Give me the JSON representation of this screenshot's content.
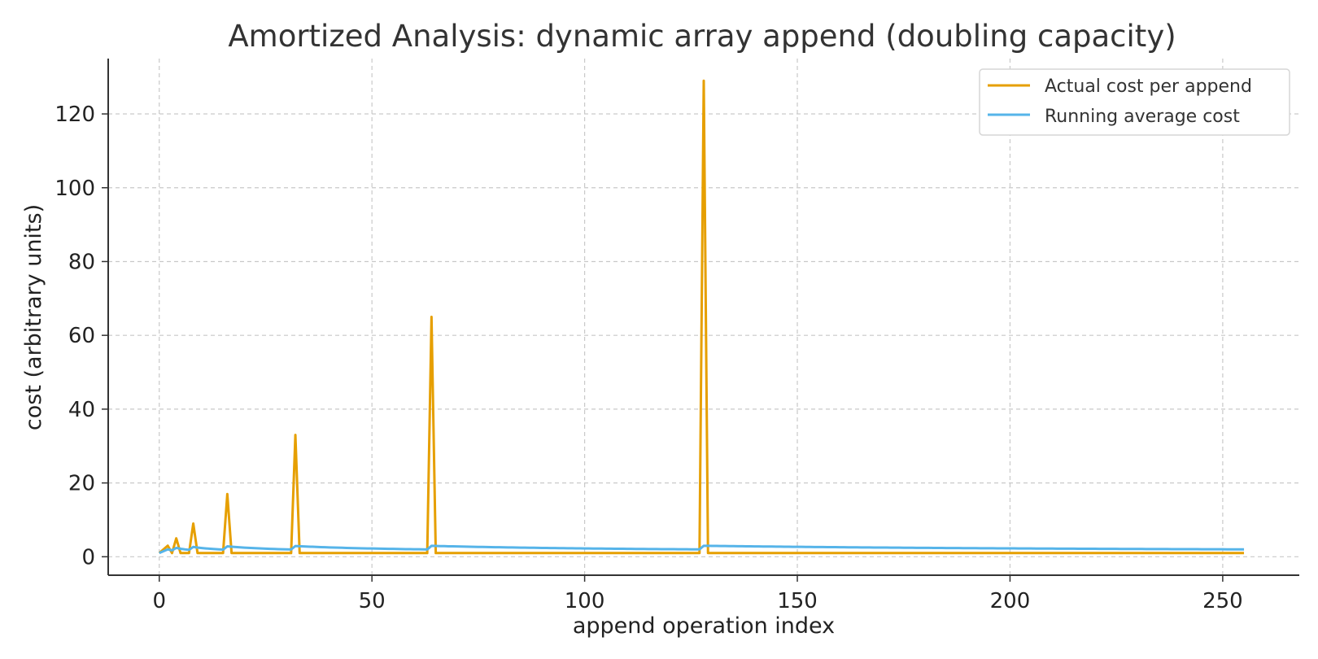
{
  "chart_data": {
    "type": "line",
    "title": "Amortized Analysis: dynamic array append (doubling capacity)",
    "xlabel": "append operation index",
    "ylabel": "cost (arbitrary units)",
    "xlim": [
      -12,
      268
    ],
    "ylim": [
      -5,
      135
    ],
    "xticks": [
      0,
      50,
      100,
      150,
      200,
      250
    ],
    "yticks": [
      0,
      20,
      40,
      60,
      80,
      100,
      120
    ],
    "grid": true,
    "legend": "top-right",
    "n_points": 256,
    "resize_indices": [
      1,
      2,
      4,
      8,
      16,
      32,
      64,
      128
    ],
    "series": [
      {
        "name": "Actual cost per append",
        "color": "#E69F00",
        "description": "1 per append, plus copy cost (i+1) when capacity doubles at index i"
      },
      {
        "name": "Running average cost",
        "color": "#56B4E9",
        "description": "cumulative average of actual cost"
      }
    ]
  }
}
